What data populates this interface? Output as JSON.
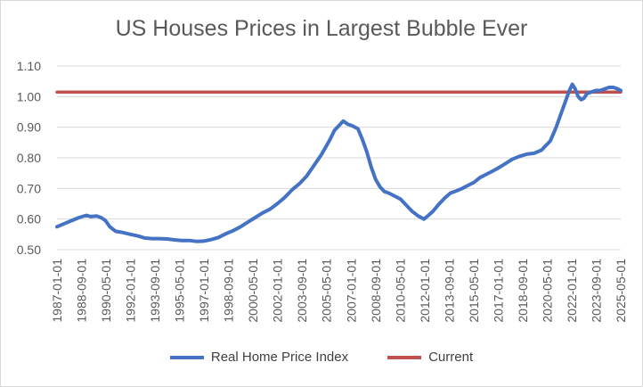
{
  "chart_data": {
    "type": "line",
    "title": "US Houses Prices in Largest Bubble Ever",
    "xlabel": "",
    "ylabel": "",
    "ylim": [
      0.5,
      1.1
    ],
    "yticks": [
      "0.50",
      "0.60",
      "0.70",
      "0.80",
      "0.90",
      "1.00",
      "1.10"
    ],
    "grid": true,
    "legend_position": "bottom",
    "x_range": [
      "1987-01-01",
      "2025-05-01"
    ],
    "x_tick_labels": [
      "1987-01-01",
      "1988-09-01",
      "1990-05-01",
      "1992-01-01",
      "1993-09-01",
      "1995-05-01",
      "1997-01-01",
      "1998-09-01",
      "2000-05-01",
      "2002-01-01",
      "2003-09-01",
      "2005-05-01",
      "2007-01-01",
      "2008-09-01",
      "2010-05-01",
      "2012-01-01",
      "2013-09-01",
      "2015-05-01",
      "2017-01-01",
      "2018-09-01",
      "2020-05-01",
      "2022-01-01",
      "2023-09-01",
      "2025-05-01"
    ],
    "series": [
      {
        "name": "Real Home Price Index",
        "color": "#4472c4",
        "x": [
          1987.0,
          1987.5,
          1988.0,
          1988.5,
          1989.0,
          1989.3,
          1989.7,
          1990.0,
          1990.3,
          1990.6,
          1991.0,
          1991.5,
          1992.0,
          1992.5,
          1993.0,
          1993.5,
          1994.0,
          1994.5,
          1995.0,
          1995.5,
          1996.0,
          1996.5,
          1997.0,
          1997.5,
          1998.0,
          1998.5,
          1999.0,
          1999.5,
          2000.0,
          2000.5,
          2001.0,
          2001.5,
          2002.0,
          2002.5,
          2003.0,
          2003.5,
          2004.0,
          2004.5,
          2005.0,
          2005.3,
          2005.6,
          2005.9,
          2006.2,
          2006.5,
          2006.8,
          2007.1,
          2007.5,
          2007.8,
          2008.1,
          2008.4,
          2008.7,
          2009.0,
          2009.3,
          2009.6,
          2010.0,
          2010.4,
          2010.8,
          2011.2,
          2011.6,
          2012.0,
          2012.3,
          2012.6,
          2013.0,
          2013.4,
          2013.8,
          2014.2,
          2014.6,
          2015.0,
          2015.4,
          2015.8,
          2016.2,
          2016.6,
          2017.0,
          2017.5,
          2018.0,
          2018.5,
          2019.0,
          2019.5,
          2020.0,
          2020.3,
          2020.6,
          2021.0,
          2021.3,
          2021.6,
          2021.9,
          2022.1,
          2022.3,
          2022.5,
          2022.7,
          2022.9,
          2023.1,
          2023.4,
          2023.7,
          2024.0,
          2024.3,
          2024.6,
          2024.9,
          2025.2,
          2025.4
        ],
        "values": [
          0.575,
          0.585,
          0.595,
          0.605,
          0.612,
          0.608,
          0.61,
          0.605,
          0.595,
          0.575,
          0.56,
          0.556,
          0.55,
          0.545,
          0.538,
          0.536,
          0.536,
          0.535,
          0.532,
          0.53,
          0.53,
          0.527,
          0.528,
          0.533,
          0.54,
          0.552,
          0.562,
          0.575,
          0.59,
          0.605,
          0.62,
          0.632,
          0.65,
          0.67,
          0.695,
          0.715,
          0.74,
          0.775,
          0.81,
          0.835,
          0.86,
          0.89,
          0.905,
          0.92,
          0.91,
          0.905,
          0.895,
          0.86,
          0.82,
          0.77,
          0.73,
          0.705,
          0.69,
          0.685,
          0.675,
          0.665,
          0.645,
          0.625,
          0.61,
          0.6,
          0.612,
          0.625,
          0.648,
          0.668,
          0.685,
          0.692,
          0.7,
          0.71,
          0.72,
          0.735,
          0.745,
          0.755,
          0.765,
          0.78,
          0.795,
          0.805,
          0.812,
          0.815,
          0.825,
          0.84,
          0.855,
          0.9,
          0.94,
          0.98,
          1.02,
          1.04,
          1.025,
          1.0,
          0.99,
          0.995,
          1.01,
          1.015,
          1.02,
          1.02,
          1.025,
          1.03,
          1.03,
          1.025,
          1.02
        ]
      },
      {
        "name": "Current",
        "color": "#c0504d",
        "x": [
          1987.0,
          2025.4
        ],
        "values": [
          1.015,
          1.015
        ]
      }
    ]
  }
}
